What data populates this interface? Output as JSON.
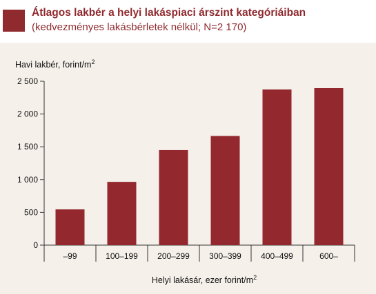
{
  "header": {
    "title": "Átlagos lakbér a helyi lakáspiaci árszint kategóriáiban",
    "subtitle": "(kedvezményes lakásbérletek nélkül; N=2 170)"
  },
  "colors": {
    "accent": "#8f2a2f",
    "bar": "#93292e",
    "panel": "#f5f0ea"
  },
  "chart_data": {
    "type": "bar",
    "title": "Átlagos lakbér a helyi lakáspiaci árszint kategóriáiban",
    "subtitle": "(kedvezményes lakásbérletek nélkül; N=2 170)",
    "ylabel": "Havi lakbér, forint/m",
    "ylabel_sup": "2",
    "xlabel": "Helyi lakásár, ezer forint/m",
    "xlabel_sup": "2",
    "categories": [
      "–99",
      "100–199",
      "200–299",
      "300–399",
      "400–499",
      "600–"
    ],
    "values": [
      545,
      965,
      1450,
      1665,
      2375,
      2395
    ],
    "ylim": [
      0,
      2500
    ],
    "yticks": [
      0,
      500,
      1000,
      1500,
      2000,
      2500
    ],
    "ytick_labels": [
      "0",
      "500",
      "1 000",
      "1 500",
      "2 000",
      "2 500"
    ],
    "grid": false,
    "legend": "none"
  }
}
